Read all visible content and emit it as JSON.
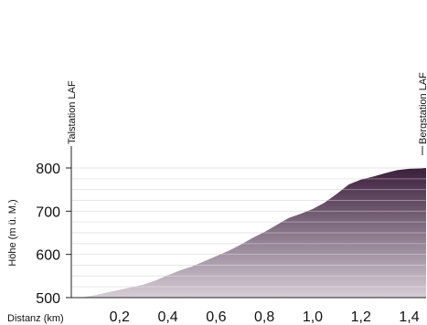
{
  "chart_data": {
    "type": "area",
    "xlabel": "Distanz (km)",
    "ylabel": "Höhe (m ü. M.)",
    "xlim": [
      0,
      1.47
    ],
    "ylim": [
      500,
      800
    ],
    "yticks": [
      {
        "value": 500,
        "label": "500"
      },
      {
        "value": 600,
        "label": "600"
      },
      {
        "value": 700,
        "label": "700"
      },
      {
        "value": 800,
        "label": "800"
      }
    ],
    "xticks": [
      {
        "value": 0.2,
        "label": "0,2"
      },
      {
        "value": 0.4,
        "label": "0,4"
      },
      {
        "value": 0.6,
        "label": "0,6"
      },
      {
        "value": 0.8,
        "label": "0,8"
      },
      {
        "value": 1.0,
        "label": "1,0"
      },
      {
        "value": 1.2,
        "label": "1,2"
      },
      {
        "value": 1.4,
        "label": "1,4"
      }
    ],
    "markers": [
      {
        "x": 0.0,
        "label": "Talstation LAF"
      },
      {
        "x": 1.47,
        "label": "Bergstation LAF"
      }
    ],
    "grid": true,
    "colors": {
      "top": "#3b1f3c",
      "bottom": "#d6cdd6",
      "axis": "#222222",
      "grid": "#e6e6e6"
    },
    "series": [
      {
        "x": [
          0.0,
          0.05,
          0.1,
          0.15,
          0.2,
          0.25,
          0.3,
          0.35,
          0.4,
          0.45,
          0.5,
          0.55,
          0.6,
          0.65,
          0.7,
          0.75,
          0.8,
          0.85,
          0.9,
          0.95,
          1.0,
          1.05,
          1.1,
          1.15,
          1.2,
          1.25,
          1.3,
          1.35,
          1.4,
          1.45,
          1.47
        ],
        "y": [
          500,
          501,
          506,
          512,
          518,
          524,
          530,
          540,
          552,
          563,
          572,
          584,
          596,
          608,
          622,
          638,
          652,
          668,
          684,
          694,
          705,
          720,
          740,
          762,
          773,
          780,
          788,
          795,
          798,
          799,
          800
        ]
      }
    ]
  }
}
